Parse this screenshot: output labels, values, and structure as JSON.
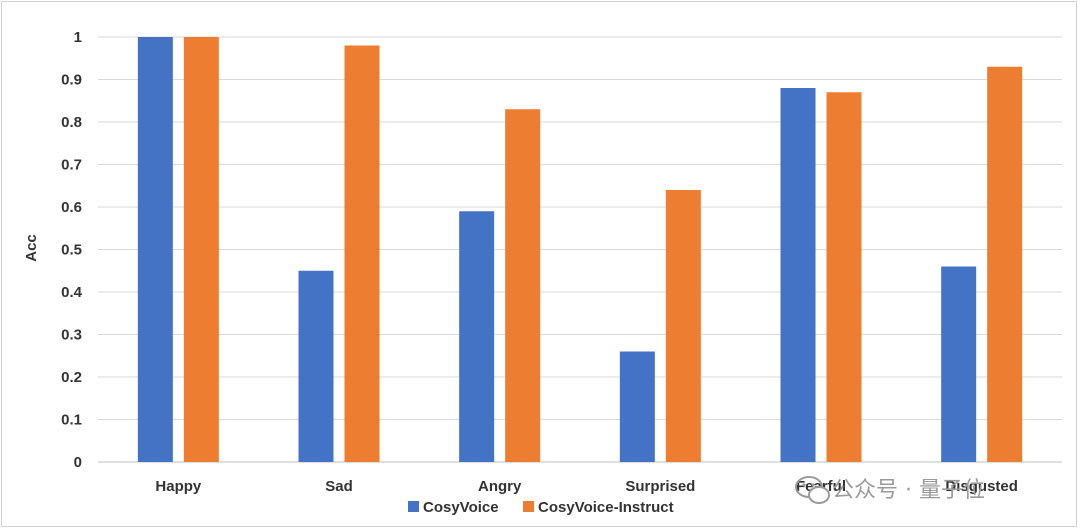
{
  "chart_data": {
    "type": "bar",
    "categories": [
      "Happy",
      "Sad",
      "Angry",
      "Surprised",
      "Fearful",
      "Disgusted"
    ],
    "series": [
      {
        "name": "CosyVoice",
        "color": "#4472C4",
        "values": [
          1.0,
          0.45,
          0.59,
          0.26,
          0.88,
          0.46
        ]
      },
      {
        "name": "CosyVoice-Instruct",
        "color": "#ED7D31",
        "values": [
          1.0,
          0.98,
          0.83,
          0.64,
          0.87,
          0.93
        ]
      }
    ],
    "ylabel": "Acc",
    "xlabel": "",
    "ylim": [
      0,
      1
    ],
    "yticks": [
      "0",
      "0.1",
      "0.2",
      "0.3",
      "0.4",
      "0.5",
      "0.6",
      "0.7",
      "0.8",
      "0.9",
      "1"
    ],
    "grid": true,
    "legend": "bottom-center"
  },
  "watermark": {
    "text": "公众号 · 量子位",
    "icon": "wechat-icon"
  }
}
